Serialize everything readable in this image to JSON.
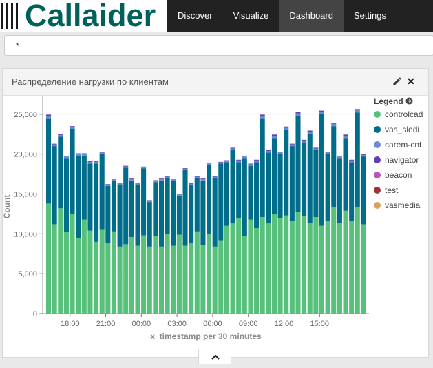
{
  "app": {
    "logo_text": "Callaider"
  },
  "nav": {
    "items": [
      {
        "label": "Discover",
        "active": false
      },
      {
        "label": "Visualize",
        "active": false
      },
      {
        "label": "Dashboard",
        "active": true
      },
      {
        "label": "Settings",
        "active": false
      }
    ]
  },
  "search": {
    "value": "*"
  },
  "panel": {
    "title": "Распределение нагрузки по клиентам",
    "icons": [
      "pencil-icon",
      "close-icon"
    ]
  },
  "legend": {
    "title": "Legend",
    "icon": "circle-arrow-right-icon"
  },
  "footer": {
    "icon": "chevron-up-icon"
  },
  "chart_data": {
    "type": "bar",
    "stacked": true,
    "ylabel": "Count",
    "xlabel": "x_timestamp per 30 minutes",
    "ylim": [
      0,
      27000
    ],
    "y_ticks": [
      "0",
      "5,000",
      "10,000",
      "15,000",
      "20,000",
      "25,000"
    ],
    "y_tick_values": [
      0,
      5000,
      10000,
      15000,
      20000,
      25000
    ],
    "x_tick_labels": [
      "18:00",
      "21:00",
      "00:00",
      "03:00",
      "06:00",
      "09:00",
      "12:00",
      "15:00"
    ],
    "x_tick_indices": [
      2,
      8,
      14,
      20,
      26,
      32,
      38,
      44
    ],
    "grid": true,
    "legend_position": "right",
    "series": [
      {
        "name": "controlcad",
        "color": "#57c17b",
        "values": [
          13800,
          11200,
          13200,
          10200,
          12500,
          9500,
          11800,
          10400,
          9000,
          10500,
          8800,
          10300,
          8400,
          8700,
          9600,
          8500,
          9800,
          8400,
          9700,
          8400,
          10000,
          8500,
          9900,
          8500,
          8800,
          10300,
          8600,
          10000,
          8400,
          9200,
          11000,
          11300,
          12000,
          9700,
          11800,
          10700,
          12100,
          11400,
          12500,
          12000,
          12300,
          11600,
          12700,
          12200,
          11400,
          12100,
          11000,
          11600,
          13400,
          11400,
          12900,
          11600,
          13300,
          11200
        ],
        "pairs": [
          13800,
          10300,
          9000,
          8800,
          11300,
          11800,
          11600,
          12500,
          11400
        ]
      },
      {
        "name": "vas_sledi",
        "color": "#006e8a",
        "values": [
          24500,
          21000,
          22200,
          19500,
          23200,
          19800,
          19800,
          18800,
          18800,
          20000,
          16000,
          16600,
          16200,
          18300,
          16700,
          16200,
          18200,
          14000,
          16500,
          16700,
          17000,
          16600,
          14800,
          18000,
          16100,
          17000,
          16700,
          18700,
          17000,
          18800,
          19000,
          20500,
          19000,
          19500,
          18500,
          19000,
          24500,
          20200,
          22000,
          20000,
          23000,
          21000,
          24800,
          21500,
          22500,
          20500,
          25000,
          20000,
          23500,
          19500,
          22000,
          19000,
          25200,
          19700
        ]
      },
      {
        "name": "carem-cnt",
        "color": "#6f87d8",
        "values": [
          300,
          200,
          200,
          200,
          200,
          200,
          200,
          200,
          200,
          200,
          150,
          150,
          150,
          150,
          150,
          150,
          150,
          150,
          150,
          150,
          150,
          150,
          150,
          150,
          150,
          150,
          150,
          150,
          150,
          150,
          150,
          200,
          200,
          200,
          200,
          200,
          300,
          200,
          300,
          200,
          300,
          200,
          300,
          200,
          300,
          200,
          300,
          200,
          300,
          200,
          300,
          200,
          300,
          200
        ]
      },
      {
        "name": "navigator",
        "color": "#663db8",
        "values": [
          150,
          100,
          100,
          100,
          100,
          100,
          100,
          100,
          100,
          100,
          80,
          80,
          80,
          80,
          80,
          80,
          80,
          80,
          80,
          80,
          80,
          80,
          80,
          80,
          80,
          80,
          80,
          80,
          80,
          80,
          80,
          100,
          100,
          100,
          100,
          100,
          150,
          100,
          150,
          100,
          150,
          100,
          150,
          100,
          150,
          100,
          150,
          100,
          150,
          100,
          150,
          100,
          150,
          100
        ]
      },
      {
        "name": "beacon",
        "color": "#bc52bc",
        "values": []
      },
      {
        "name": "test",
        "color": "#9e3533",
        "values": []
      },
      {
        "name": "vasmedia",
        "color": "#daa05d",
        "values": []
      }
    ]
  }
}
